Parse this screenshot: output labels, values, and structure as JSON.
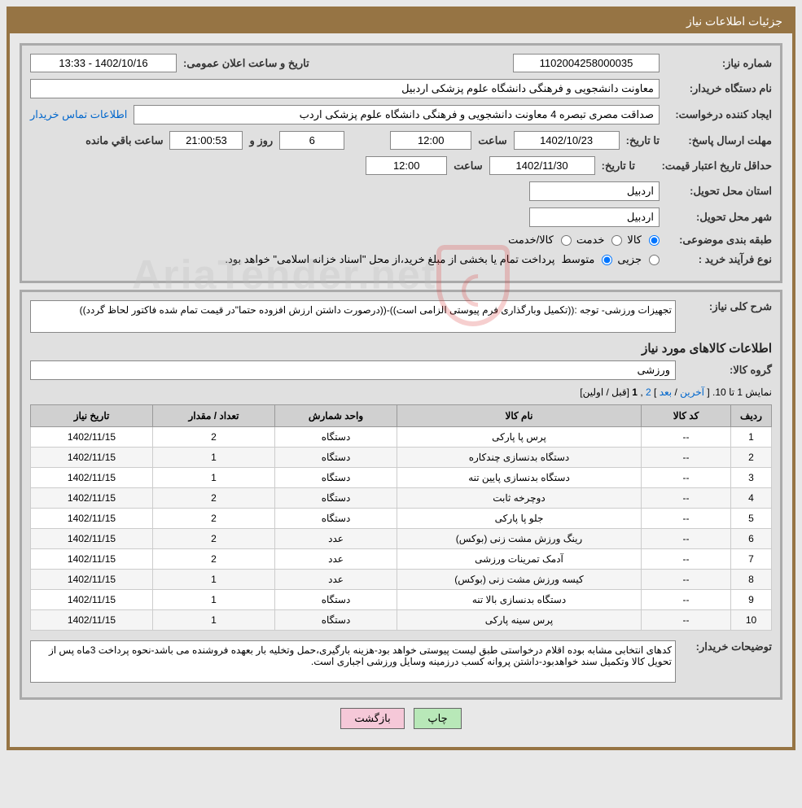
{
  "header": {
    "title": "جزئیات اطلاعات نیاز"
  },
  "form": {
    "need_no_lbl": "شماره نیاز:",
    "need_no": "1102004258000035",
    "announce_lbl": "تاریخ و ساعت اعلان عمومی:",
    "announce_val": "1402/10/16 - 13:33",
    "buyer_lbl": "نام دستگاه خریدار:",
    "buyer_val": "معاونت دانشجویی و فرهنگی دانشگاه علوم پزشکی اردبیل",
    "creator_lbl": "ایجاد کننده درخواست:",
    "creator_val": "صداقت مصری تبصره 4 معاونت دانشجویی و فرهنگی دانشگاه علوم پزشکی اردب",
    "buyer_contact_link": "اطلاعات تماس خریدار",
    "deadline_lbl": "مهلت ارسال پاسخ:",
    "to_date_lbl": "تا تاریخ:",
    "deadline_date": "1402/10/23",
    "time_lbl": "ساعت",
    "deadline_time": "12:00",
    "days_remain": "6",
    "days_lbl": "روز و",
    "time_remain": "21:00:53",
    "remain_lbl": "ساعت باقي مانده",
    "validity_lbl": "حداقل تاریخ اعتبار قیمت:",
    "validity_date": "1402/11/30",
    "validity_time": "12:00",
    "province_lbl": "استان محل تحویل:",
    "province_val": "اردبیل",
    "city_lbl": "شهر محل تحویل:",
    "city_val": "اردبیل",
    "classify_lbl": "طبقه بندی موضوعی:",
    "r_goods": "کالا",
    "r_service": "خدمت",
    "r_both": "کالا/خدمت",
    "process_lbl": "نوع فرآیند خرید :",
    "r_partial": "جزیی",
    "r_medium": "متوسط",
    "process_note": "پرداخت تمام یا بخشی از مبلغ خرید،از محل \"اسناد خزانه اسلامی\" خواهد بود."
  },
  "desc": {
    "general_lbl": "شرح کلی نیاز:",
    "general_val": "تجهیزات ورزشی- توجه :((تکمیل وبارگذاری فرم پیوستی الزامی است))-((درصورت داشتن ارزش افزوده حتما\"در قیمت تمام شده فاکتور لحاظ گردد))",
    "goods_info_lbl": "اطلاعات کالاهای مورد نیاز",
    "group_lbl": "گروه کالا:",
    "group_val": "ورزشی"
  },
  "pager": {
    "text1": "نمایش 1 تا 10.",
    "first": "اولین",
    "prev": "قبل",
    "p1": "1",
    "p2": "2",
    "next": "بعد",
    "last": "آخرین"
  },
  "table": {
    "h_row": "ردیف",
    "h_code": "کد کالا",
    "h_name": "نام کالا",
    "h_unit": "واحد شمارش",
    "h_qty": "تعداد / مقدار",
    "h_date": "تاریخ نیاز",
    "rows": [
      {
        "n": "1",
        "code": "--",
        "name": "پرس پا پارکی",
        "unit": "دستگاه",
        "qty": "2",
        "date": "1402/11/15"
      },
      {
        "n": "2",
        "code": "--",
        "name": "دستگاه بدنسازی چندکاره",
        "unit": "دستگاه",
        "qty": "1",
        "date": "1402/11/15"
      },
      {
        "n": "3",
        "code": "--",
        "name": "دستگاه بدنسازی پایین تنه",
        "unit": "دستگاه",
        "qty": "1",
        "date": "1402/11/15"
      },
      {
        "n": "4",
        "code": "--",
        "name": "دوچرخه ثابت",
        "unit": "دستگاه",
        "qty": "2",
        "date": "1402/11/15"
      },
      {
        "n": "5",
        "code": "--",
        "name": "جلو پا پارکی",
        "unit": "دستگاه",
        "qty": "2",
        "date": "1402/11/15"
      },
      {
        "n": "6",
        "code": "--",
        "name": "رینگ ورزش مشت زنی (بوکس)",
        "unit": "عدد",
        "qty": "2",
        "date": "1402/11/15"
      },
      {
        "n": "7",
        "code": "--",
        "name": "آدمک تمرینات ورزشی",
        "unit": "عدد",
        "qty": "2",
        "date": "1402/11/15"
      },
      {
        "n": "8",
        "code": "--",
        "name": "کیسه ورزش مشت زنی (بوکس)",
        "unit": "عدد",
        "qty": "1",
        "date": "1402/11/15"
      },
      {
        "n": "9",
        "code": "--",
        "name": "دستگاه بدنسازی بالا تنه",
        "unit": "دستگاه",
        "qty": "1",
        "date": "1402/11/15"
      },
      {
        "n": "10",
        "code": "--",
        "name": "پرس سینه پارکی",
        "unit": "دستگاه",
        "qty": "1",
        "date": "1402/11/15"
      }
    ]
  },
  "buyer_note": {
    "lbl": "توضیحات خریدار:",
    "val": "کدهای انتخابی مشابه بوده اقلام درخواستی طبق لیست پیوستی خواهد بود-هزینه بارگیری،حمل وتخلیه بار بعهده فروشنده می باشد-نحوه پرداخت 3ماه پس از تحویل کالا وتکمیل سند خواهدبود-داشتن پروانه کسب درزمینه وسایل ورزشی اجباری است."
  },
  "buttons": {
    "print": "چاپ",
    "back": "بازگشت"
  },
  "watermark": "AriaTender.net"
}
